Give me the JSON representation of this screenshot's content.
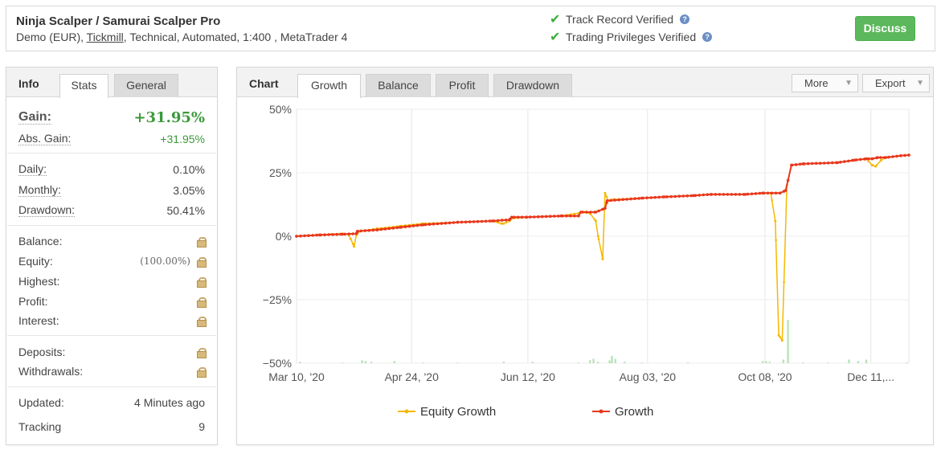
{
  "header": {
    "title": "Ninja Scalper / Samurai Scalper Pro",
    "sub_prefix": "Demo (EUR), ",
    "broker": "Tickmill",
    "sub_suffix": ", Technical, Automated, 1:400 , MetaTrader 4",
    "track_record": "Track Record Verified",
    "trading_privileges": "Trading Privileges Verified",
    "discuss_label": "Discuss",
    "help_glyph": "?"
  },
  "left": {
    "title": "Info",
    "tabs": [
      "Stats",
      "General"
    ],
    "gain_label": "Gain:",
    "gain_value": "+31.95%",
    "abs_gain_label": "Abs. Gain:",
    "abs_gain_value": "+31.95%",
    "daily_label": "Daily:",
    "daily_value": "0.10%",
    "monthly_label": "Monthly:",
    "monthly_value": "3.05%",
    "drawdown_label": "Drawdown:",
    "drawdown_value": "50.41%",
    "balance_label": "Balance:",
    "equity_label": "Equity:",
    "equity_pct": "(100.00%)",
    "highest_label": "Highest:",
    "profit_label": "Profit:",
    "interest_label": "Interest:",
    "deposits_label": "Deposits:",
    "withdrawals_label": "Withdrawals:",
    "updated_label": "Updated:",
    "updated_value": "4 Minutes ago",
    "tracking_label": "Tracking",
    "tracking_value": "9"
  },
  "right": {
    "title": "Chart",
    "tabs": [
      "Growth",
      "Balance",
      "Profit",
      "Drawdown"
    ],
    "active_tab": "Growth",
    "more_label": "More",
    "export_label": "Export"
  },
  "colors": {
    "equity": "#f5b800",
    "growth": "#e8381c",
    "volume": "#b9e3b9",
    "positive": "#3a9a3a",
    "discuss": "#5cb85c"
  },
  "chart_data": {
    "type": "line",
    "ylim": [
      -50,
      50
    ],
    "y_ticks": [
      "50%",
      "25%",
      "0%",
      "−25%",
      "−50%"
    ],
    "x_ticks": [
      "Mar 10, '20",
      "Apr 24, '20",
      "Jun 12, '20",
      "Aug 03, '20",
      "Oct 08, '20",
      "Dec 11,..."
    ],
    "series": [
      {
        "name": "Equity Growth",
        "color": "#f5b800",
        "points": [
          [
            0,
            0
          ],
          [
            10,
            0.3
          ],
          [
            20,
            0.6
          ],
          [
            30,
            0.8
          ],
          [
            40,
            1
          ],
          [
            45,
            0.8
          ],
          [
            47,
            -1
          ],
          [
            50,
            -4
          ],
          [
            52,
            0.5
          ],
          [
            55,
            2
          ],
          [
            70,
            3
          ],
          [
            90,
            4
          ],
          [
            110,
            5
          ],
          [
            140,
            5.5
          ],
          [
            170,
            6
          ],
          [
            178,
            5
          ],
          [
            180,
            5
          ],
          [
            185,
            6
          ],
          [
            187,
            7
          ],
          [
            200,
            7.5
          ],
          [
            230,
            8
          ],
          [
            250,
            9.5
          ],
          [
            255,
            9
          ],
          [
            260,
            6
          ],
          [
            262,
            0
          ],
          [
            266,
            -9
          ],
          [
            268,
            17
          ],
          [
            271,
            14
          ],
          [
            275,
            14.5
          ],
          [
            300,
            15
          ],
          [
            320,
            15.5
          ],
          [
            345,
            16
          ],
          [
            360,
            16.5
          ],
          [
            390,
            16.5
          ],
          [
            412,
            17
          ],
          [
            416,
            6
          ],
          [
            419,
            -39
          ],
          [
            422,
            -41
          ],
          [
            426,
            20
          ],
          [
            430,
            28
          ],
          [
            440,
            28.5
          ],
          [
            470,
            29
          ],
          [
            485,
            30
          ],
          [
            495,
            30.5
          ],
          [
            500,
            28
          ],
          [
            503,
            27.5
          ],
          [
            508,
            30
          ],
          [
            512,
            31
          ],
          [
            525,
            31.7
          ],
          [
            532,
            31.95
          ]
        ]
      },
      {
        "name": "Growth",
        "color": "#e8381c",
        "points": [
          [
            0,
            0
          ],
          [
            20,
            0.5
          ],
          [
            40,
            0.8
          ],
          [
            52,
            1
          ],
          [
            53,
            2
          ],
          [
            70,
            2.5
          ],
          [
            90,
            3.5
          ],
          [
            110,
            4.5
          ],
          [
            140,
            5.5
          ],
          [
            170,
            6
          ],
          [
            185,
            6.5
          ],
          [
            187,
            7.5
          ],
          [
            200,
            7.5
          ],
          [
            230,
            8
          ],
          [
            245,
            8
          ],
          [
            247,
            9.5
          ],
          [
            260,
            9.5
          ],
          [
            268,
            11
          ],
          [
            270,
            14
          ],
          [
            300,
            15
          ],
          [
            320,
            15.5
          ],
          [
            345,
            16
          ],
          [
            360,
            16.5
          ],
          [
            390,
            16.5
          ],
          [
            405,
            17
          ],
          [
            420,
            17
          ],
          [
            425,
            18
          ],
          [
            430,
            28
          ],
          [
            440,
            28.5
          ],
          [
            470,
            29
          ],
          [
            485,
            30
          ],
          [
            495,
            30.5
          ],
          [
            500,
            30.5
          ],
          [
            505,
            31
          ],
          [
            512,
            31
          ],
          [
            525,
            31.7
          ],
          [
            532,
            31.95
          ]
        ]
      }
    ]
  }
}
